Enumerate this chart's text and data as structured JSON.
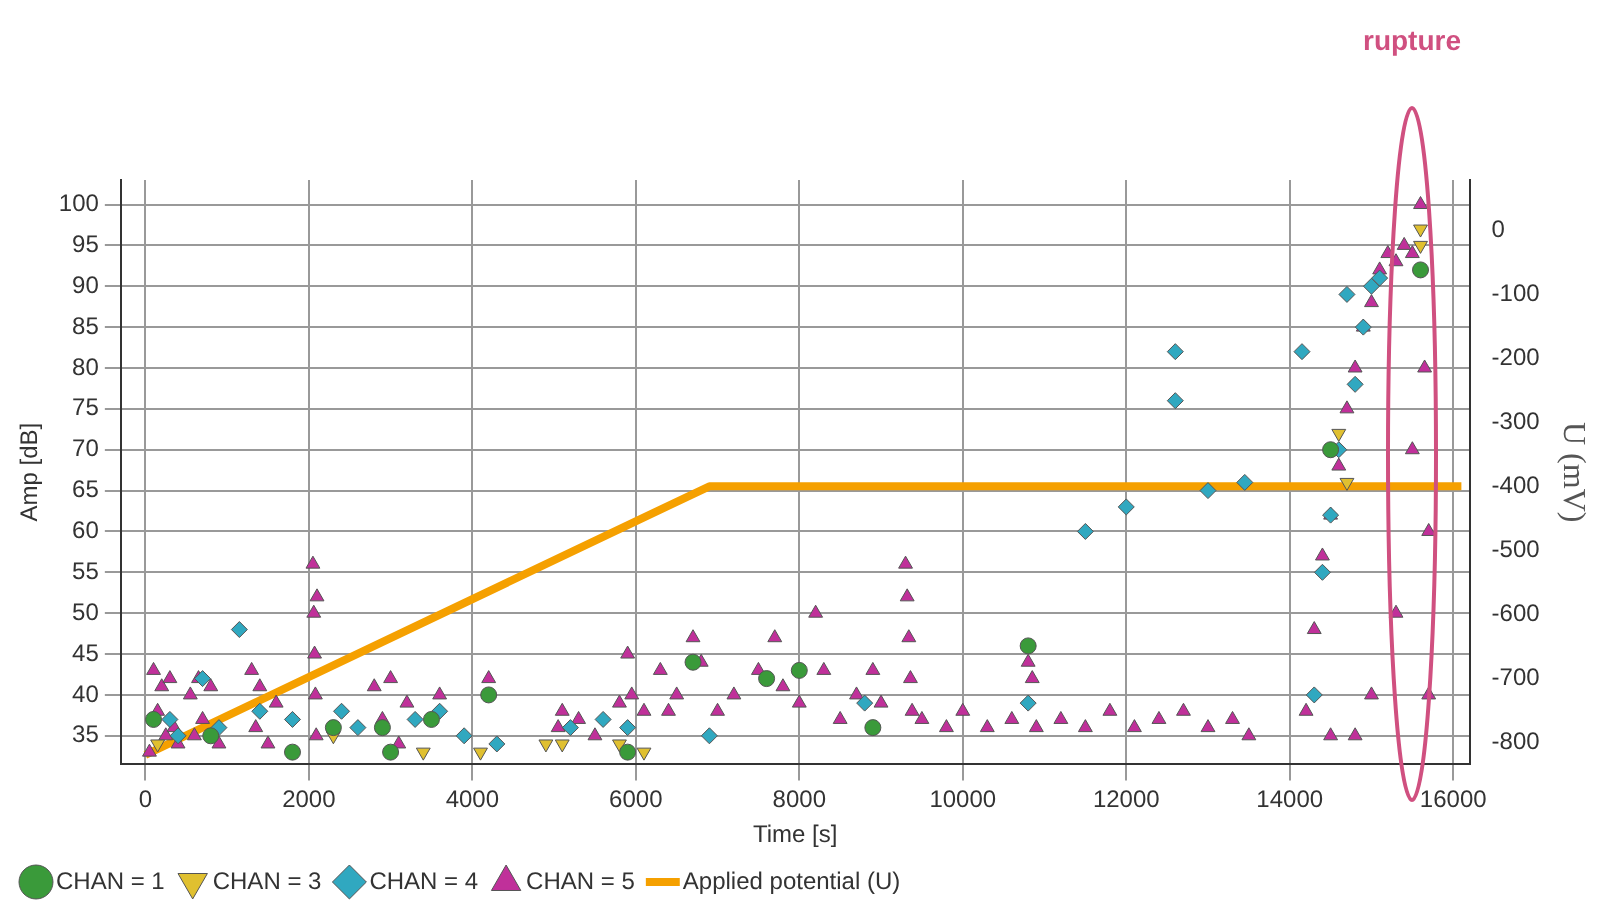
{
  "chart_data": {
    "type": "scatter",
    "xlabel": "Time [s]",
    "ylabel": "Amp [dB]",
    "y2label": "U (mV)",
    "xlim": [
      -300,
      16200
    ],
    "xticks": [
      0,
      2000,
      4000,
      6000,
      8000,
      10000,
      12000,
      14000,
      16000
    ],
    "ylim": [
      31.5,
      103
    ],
    "yticks": [
      35,
      40,
      45,
      50,
      55,
      60,
      65,
      70,
      75,
      80,
      85,
      90,
      95,
      100
    ],
    "y2lim": [
      -835,
      79
    ],
    "y2ticks": [
      -800,
      -700,
      -600,
      -500,
      -400,
      -300,
      -200,
      -100,
      0
    ],
    "grid": true,
    "legend": "bottom",
    "annotations": [
      "rupture"
    ],
    "series": [
      {
        "name": "CHAN = 1",
        "color": "#3a9a3a",
        "marker": "circle",
        "x": [
          100,
          800,
          1800,
          2300,
          2900,
          3000,
          3500,
          4200,
          5900,
          6700,
          7600,
          8000,
          8900,
          10800,
          14500,
          15600
        ],
        "values": [
          37,
          35,
          33,
          36,
          36,
          33,
          37,
          40,
          33,
          44,
          42,
          43,
          36,
          46,
          70,
          92
        ]
      },
      {
        "name": "CHAN = 3",
        "color": "#e0c030",
        "marker": "triangle-down",
        "x": [
          150,
          2300,
          3400,
          4100,
          4900,
          5100,
          5800,
          6100,
          14600,
          14700,
          15600,
          15600
        ],
        "values": [
          34,
          35,
          33,
          33,
          34,
          34,
          34,
          33,
          72,
          66,
          95,
          97
        ]
      },
      {
        "name": "CHAN = 4",
        "color": "#30a8c0",
        "marker": "diamond",
        "x": [
          300,
          400,
          700,
          900,
          1150,
          1400,
          1800,
          2400,
          2600,
          3300,
          3600,
          3900,
          4300,
          5200,
          5600,
          5900,
          6900,
          8800,
          10800,
          11500,
          12000,
          12600,
          12600,
          13000,
          13450,
          14150,
          14300,
          14400,
          14500,
          14600,
          14700,
          14800,
          14900,
          15000,
          15100
        ],
        "values": [
          37,
          35,
          42,
          36,
          48,
          38,
          37,
          38,
          36,
          37,
          38,
          35,
          34,
          36,
          37,
          36,
          35,
          39,
          39,
          60,
          63,
          76,
          82,
          65,
          66,
          82,
          40,
          55,
          62,
          70,
          89,
          78,
          85,
          90,
          91
        ]
      },
      {
        "name": "CHAN = 5",
        "color": "#c0309a",
        "marker": "triangle",
        "x": [
          50,
          100,
          150,
          200,
          250,
          300,
          350,
          400,
          550,
          600,
          650,
          700,
          800,
          900,
          1300,
          1350,
          1400,
          1500,
          1600,
          2050,
          2060,
          2070,
          2080,
          2090,
          2100,
          2800,
          2900,
          3000,
          3100,
          3200,
          3600,
          4200,
          5050,
          5100,
          5300,
          5500,
          5800,
          5900,
          5950,
          6100,
          6300,
          6400,
          6500,
          6700,
          6800,
          7000,
          7200,
          7500,
          7700,
          7800,
          8000,
          8200,
          8300,
          8500,
          8700,
          8900,
          9000,
          9300,
          9320,
          9340,
          9360,
          9380,
          9500,
          9800,
          10000,
          10300,
          10600,
          10800,
          10850,
          10900,
          11200,
          11500,
          11800,
          12100,
          12400,
          12700,
          13000,
          13300,
          13500,
          14200,
          14300,
          14400,
          14500,
          14600,
          14700,
          14800,
          14900,
          15000,
          15100,
          15200,
          15300,
          15400,
          15500,
          15600,
          15650,
          15700,
          15700,
          15500,
          15300,
          15000,
          14800,
          14500
        ],
        "values": [
          33,
          43,
          38,
          41,
          35,
          42,
          36,
          34,
          40,
          35,
          42,
          37,
          41,
          34,
          43,
          36,
          41,
          34,
          39,
          56,
          50,
          45,
          40,
          35,
          52,
          41,
          37,
          42,
          34,
          39,
          40,
          42,
          36,
          38,
          37,
          35,
          39,
          45,
          40,
          38,
          43,
          38,
          40,
          47,
          44,
          38,
          40,
          43,
          47,
          41,
          39,
          50,
          43,
          37,
          40,
          43,
          39,
          56,
          52,
          47,
          42,
          38,
          37,
          36,
          38,
          36,
          37,
          44,
          42,
          36,
          37,
          36,
          38,
          36,
          37,
          38,
          36,
          37,
          35,
          38,
          48,
          57,
          62,
          68,
          75,
          80,
          85,
          88,
          92,
          94,
          93,
          95,
          94,
          100,
          80,
          60,
          40,
          70,
          50,
          40,
          35,
          35
        ]
      },
      {
        "name": "Applied potential (U)",
        "type": "line",
        "axis": "y2",
        "color": "#f5a000",
        "x": [
          0,
          6900,
          16100
        ],
        "values": [
          -820,
          -400,
          -400
        ]
      }
    ]
  }
}
